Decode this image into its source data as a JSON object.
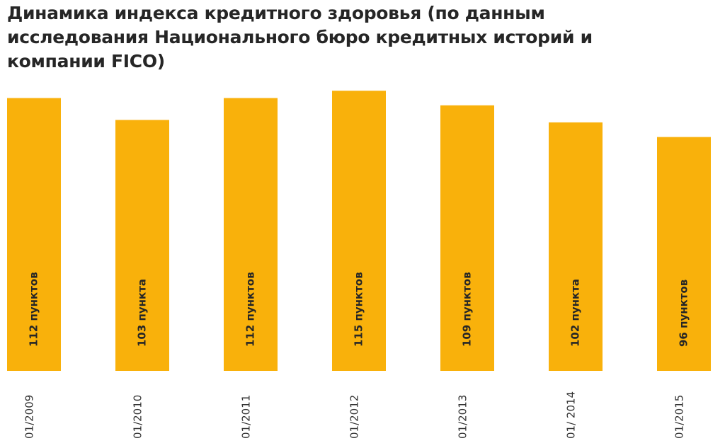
{
  "chart_data": {
    "type": "bar",
    "title": "Динамика индекса кредитного здоровья (по данным исследования Национального бюро кредитных историй и компании FICO)",
    "categories": [
      "01/2009",
      "01/2010",
      "01/2011",
      "01/2012",
      "01/2013",
      "01/ 2014",
      "01/2015"
    ],
    "values": [
      112,
      103,
      112,
      115,
      109,
      102,
      96
    ],
    "value_labels": [
      "112 пунктов",
      "103 пункта",
      "112 пунктов",
      "115 пунктов",
      "109 пунктов",
      "102 пункта",
      "96 пунктов"
    ],
    "color": "#f9b10b",
    "ylim": [
      0,
      120
    ]
  }
}
